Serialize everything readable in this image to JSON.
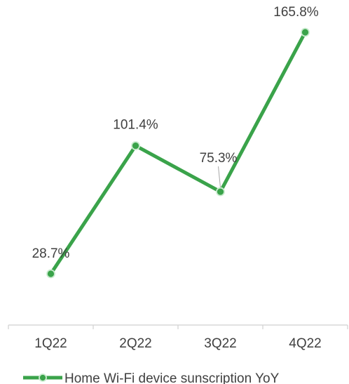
{
  "chart_data": {
    "type": "line",
    "categories": [
      "1Q22",
      "2Q22",
      "3Q22",
      "4Q22"
    ],
    "series": [
      {
        "name": "Home Wi-Fi device sunscription YoY",
        "values": [
          28.7,
          101.4,
          75.3,
          165.8
        ],
        "labels": [
          "28.7%",
          "101.4%",
          "75.3%",
          "165.8%"
        ]
      }
    ],
    "title": "",
    "xlabel": "",
    "ylabel": "",
    "ylim": [
      0,
      170
    ],
    "grid": false,
    "legend": "bottom",
    "colors": {
      "line": "#3aa34a",
      "marker_fill": "#3aa34a",
      "marker_stroke": "#c9ebce",
      "axis": "#d0d0d0",
      "text": "#404040"
    }
  }
}
